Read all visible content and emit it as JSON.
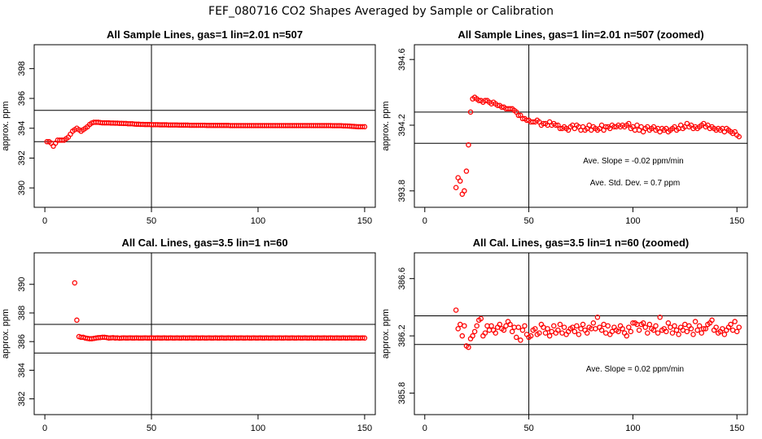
{
  "title": "FEF_080716  CO2 Shapes Averaged by Sample or Calibration",
  "colors": {
    "points": "#ff0000",
    "lines": "#000000"
  },
  "chart_data": [
    {
      "type": "scatter",
      "title": "All Sample Lines, gas=1 lin=2.01 n=507",
      "xlabel": "",
      "ylabel": "approx. ppm",
      "xlim": [
        -5,
        155
      ],
      "ylim": [
        388.7,
        399.6
      ],
      "xticks": [
        0,
        50,
        100,
        150
      ],
      "yticks": [
        390,
        392,
        394,
        396,
        398
      ],
      "hlines": [
        393.1,
        395.2
      ],
      "vline": 50,
      "point_spacing": 1,
      "x_start": 1,
      "y": [
        393.1,
        393.1,
        393.0,
        392.8,
        393.0,
        393.2,
        393.2,
        393.2,
        393.2,
        393.3,
        393.4,
        393.6,
        393.8,
        393.9,
        394.0,
        393.9,
        393.8,
        393.9,
        394.0,
        394.1,
        394.25,
        394.35,
        394.4,
        394.4,
        394.4,
        394.38,
        394.36,
        394.36,
        394.36,
        394.36,
        394.35,
        394.35,
        394.34,
        394.34,
        394.33,
        394.33,
        394.32,
        394.32,
        394.3,
        394.3,
        394.3,
        394.28,
        394.27,
        394.27,
        394.26,
        394.26,
        394.25,
        394.25,
        394.25,
        394.24,
        394.24,
        394.24,
        394.24,
        394.23,
        394.23,
        394.23,
        394.23,
        394.22,
        394.22,
        394.22,
        394.22,
        394.22,
        394.21,
        394.21,
        394.21,
        394.21,
        394.21,
        394.2,
        394.2,
        394.2,
        394.2,
        394.2,
        394.2,
        394.2,
        394.2,
        394.19,
        394.19,
        394.19,
        394.19,
        394.19,
        394.19,
        394.19,
        394.19,
        394.19,
        394.19,
        394.19,
        394.18,
        394.18,
        394.18,
        394.18,
        394.18,
        394.18,
        394.18,
        394.18,
        394.18,
        394.18,
        394.18,
        394.18,
        394.18,
        394.18,
        394.18,
        394.18,
        394.18,
        394.18,
        394.18,
        394.18,
        394.18,
        394.18,
        394.18,
        394.18,
        394.18,
        394.18,
        394.18,
        394.18,
        394.18,
        394.18,
        394.18,
        394.18,
        394.18,
        394.18,
        394.18,
        394.18,
        394.18,
        394.18,
        394.18,
        394.18,
        394.18,
        394.18,
        394.18,
        394.18,
        394.18,
        394.18,
        394.18,
        394.18,
        394.17,
        394.17,
        394.17,
        394.17,
        394.17,
        394.16,
        394.16,
        394.15,
        394.14,
        394.13,
        394.12,
        394.11,
        394.1,
        394.1,
        394.1,
        394.1
      ]
    },
    {
      "type": "scatter",
      "title": "All Sample Lines, gas=1 lin=2.01 n=507 (zoomed)",
      "xlabel": "",
      "ylabel": "approx. ppm",
      "xlim": [
        -5,
        155
      ],
      "ylim": [
        393.7,
        394.69
      ],
      "xticks": [
        0,
        50,
        100,
        150
      ],
      "yticks": [
        393.8,
        394.2,
        394.6
      ],
      "hlines": [
        394.09,
        394.28
      ],
      "vline": 50,
      "annotations": [
        "Ave. Slope =  -0.02  ppm/min",
        "Ave. Std. Dev. =  0.7  ppm"
      ],
      "point_spacing": 1,
      "x_start": 15,
      "y": [
        393.82,
        393.88,
        393.86,
        393.78,
        393.8,
        393.92,
        394.08,
        394.28,
        394.36,
        394.37,
        394.36,
        394.35,
        394.35,
        394.34,
        394.35,
        394.35,
        394.34,
        394.33,
        394.34,
        394.33,
        394.32,
        394.32,
        394.31,
        394.31,
        394.3,
        394.3,
        394.3,
        394.3,
        394.29,
        394.28,
        394.26,
        394.26,
        394.24,
        394.24,
        394.23,
        394.23,
        394.22,
        394.22,
        394.22,
        394.23,
        394.22,
        394.2,
        394.21,
        394.21,
        394.2,
        394.22,
        394.2,
        394.21,
        394.2,
        394.2,
        394.18,
        394.18,
        394.19,
        394.18,
        394.17,
        394.19,
        394.2,
        394.18,
        394.2,
        394.19,
        394.17,
        394.19,
        394.17,
        394.18,
        394.2,
        394.17,
        394.19,
        394.18,
        394.17,
        394.18,
        394.2,
        394.17,
        394.19,
        394.19,
        394.18,
        394.2,
        394.19,
        394.19,
        394.2,
        394.19,
        394.2,
        394.19,
        394.2,
        394.21,
        394.18,
        394.19,
        394.17,
        394.2,
        394.17,
        394.19,
        394.16,
        394.18,
        394.19,
        394.17,
        394.18,
        394.19,
        394.17,
        394.18,
        394.16,
        394.18,
        394.17,
        394.18,
        394.16,
        394.17,
        394.18,
        394.19,
        394.17,
        394.18,
        394.2,
        394.18,
        394.19,
        394.21,
        394.19,
        394.2,
        394.18,
        394.19,
        394.18,
        394.19,
        394.2,
        394.21,
        394.19,
        394.2,
        394.18,
        394.19,
        394.18,
        394.17,
        394.18,
        394.17,
        394.18,
        394.16,
        394.18,
        394.17,
        394.16,
        394.15,
        394.16,
        394.14,
        394.13
      ]
    },
    {
      "type": "scatter",
      "title": "All Cal. Lines, gas=3.5 lin=1 n=60",
      "xlabel": "",
      "ylabel": "approx. ppm",
      "xlim": [
        -5,
        155
      ],
      "ylim": [
        380.9,
        392.2
      ],
      "xticks": [
        0,
        50,
        100,
        150
      ],
      "yticks": [
        382,
        384,
        386,
        388,
        390
      ],
      "hlines": [
        385.2,
        387.2
      ],
      "vline": 50,
      "point_spacing": 1,
      "x_start": 14,
      "y": [
        390.1,
        387.5,
        386.35,
        386.3,
        386.3,
        386.25,
        386.22,
        386.2,
        386.2,
        386.22,
        386.25,
        386.27,
        386.28,
        386.3,
        386.3,
        386.28,
        386.25,
        386.26,
        386.27,
        386.25,
        386.26,
        386.24,
        386.25,
        386.26,
        386.25,
        386.25,
        386.26,
        386.25,
        386.25,
        386.26,
        386.25,
        386.25,
        386.25,
        386.26,
        386.25,
        386.25,
        386.26,
        386.25,
        386.25,
        386.26,
        386.25,
        386.25,
        386.26,
        386.25,
        386.25,
        386.26,
        386.25,
        386.25,
        386.26,
        386.25,
        386.25,
        386.26,
        386.25,
        386.25,
        386.26,
        386.25,
        386.25,
        386.26,
        386.25,
        386.25,
        386.26,
        386.25,
        386.25,
        386.26,
        386.25,
        386.25,
        386.26,
        386.25,
        386.25,
        386.26,
        386.25,
        386.25,
        386.26,
        386.25,
        386.25,
        386.26,
        386.25,
        386.25,
        386.26,
        386.25,
        386.25,
        386.26,
        386.25,
        386.25,
        386.26,
        386.25,
        386.25,
        386.26,
        386.25,
        386.25,
        386.26,
        386.25,
        386.25,
        386.26,
        386.25,
        386.25,
        386.26,
        386.25,
        386.25,
        386.26,
        386.25,
        386.25,
        386.26,
        386.25,
        386.25,
        386.26,
        386.25,
        386.25,
        386.26,
        386.25,
        386.25,
        386.26,
        386.25,
        386.25,
        386.26,
        386.25,
        386.25,
        386.26,
        386.25,
        386.25,
        386.26,
        386.25,
        386.25,
        386.26,
        386.25,
        386.25,
        386.26,
        386.25,
        386.25,
        386.26,
        386.25,
        386.25,
        386.26,
        386.25,
        386.25,
        386.26,
        386.25
      ]
    },
    {
      "type": "scatter",
      "title": "All Cal. Lines, gas=3.5 lin=1 n=60 (zoomed)",
      "xlabel": "",
      "ylabel": "approx. ppm",
      "xlim": [
        -5,
        155
      ],
      "ylim": [
        385.65,
        386.78
      ],
      "xticks": [
        0,
        50,
        100,
        150
      ],
      "yticks": [
        385.8,
        386.2,
        386.6
      ],
      "hlines": [
        386.14,
        386.34
      ],
      "vline": 50,
      "annotations": [
        "Ave. Slope =  0.02  ppm/min"
      ],
      "point_spacing": 1,
      "x_start": 15,
      "y": [
        386.38,
        386.25,
        386.28,
        386.2,
        386.27,
        386.13,
        386.12,
        386.18,
        386.2,
        386.23,
        386.27,
        386.31,
        386.32,
        386.2,
        386.22,
        386.27,
        386.24,
        386.27,
        386.24,
        386.22,
        386.26,
        386.28,
        386.25,
        386.24,
        386.27,
        386.3,
        386.28,
        386.23,
        386.26,
        386.19,
        386.26,
        386.17,
        386.24,
        386.27,
        386.21,
        386.19,
        386.2,
        386.24,
        386.25,
        386.21,
        386.22,
        386.28,
        386.26,
        386.22,
        386.25,
        386.2,
        386.23,
        386.27,
        386.22,
        386.24,
        386.28,
        386.22,
        386.26,
        386.21,
        386.23,
        386.25,
        386.26,
        386.23,
        386.27,
        386.21,
        386.25,
        386.28,
        386.24,
        386.22,
        386.26,
        386.25,
        386.29,
        386.25,
        386.33,
        386.26,
        386.24,
        386.28,
        386.22,
        386.27,
        386.21,
        386.23,
        386.26,
        386.24,
        386.23,
        386.27,
        386.25,
        386.22,
        386.2,
        386.26,
        386.23,
        386.29,
        386.29,
        386.28,
        386.24,
        386.28,
        386.29,
        386.26,
        386.22,
        386.28,
        386.25,
        386.24,
        386.27,
        386.22,
        386.33,
        386.24,
        386.25,
        386.23,
        386.29,
        386.26,
        386.22,
        386.27,
        386.24,
        386.21,
        386.26,
        386.24,
        386.28,
        386.23,
        386.27,
        386.25,
        386.21,
        386.3,
        386.24,
        386.27,
        386.22,
        386.25,
        386.25,
        386.28,
        386.29,
        386.31,
        386.24,
        386.26,
        386.22,
        386.23,
        386.25,
        386.21,
        386.24,
        386.26,
        386.28,
        386.24,
        386.3,
        386.23,
        386.26
      ]
    }
  ]
}
